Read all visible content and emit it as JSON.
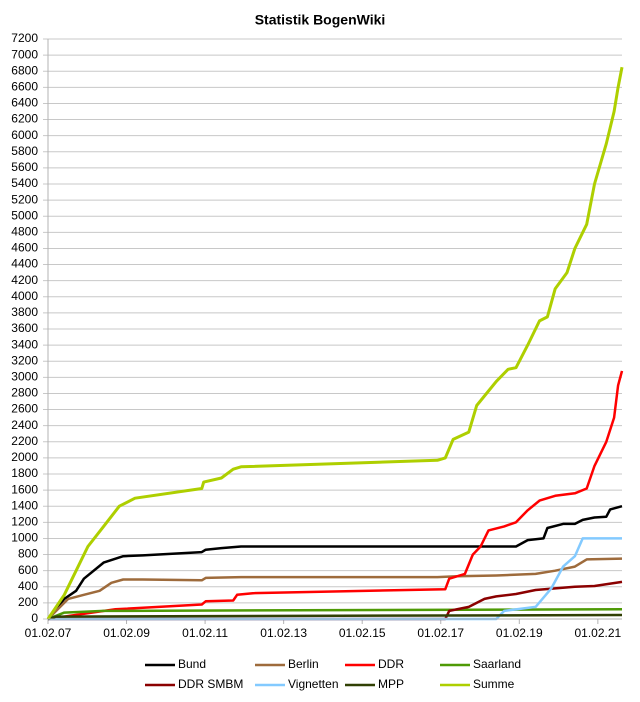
{
  "chart_data": {
    "type": "line",
    "title": "Statistik BogenWiki",
    "xlim": [
      2007.085,
      2021.7
    ],
    "ylim": [
      0,
      7200
    ],
    "yticks": [
      0,
      200,
      400,
      600,
      800,
      1000,
      1200,
      1400,
      1600,
      1800,
      2000,
      2200,
      2400,
      2600,
      2800,
      3000,
      3200,
      3400,
      3600,
      3800,
      4000,
      4200,
      4400,
      4600,
      4800,
      5000,
      5200,
      5400,
      5600,
      5800,
      6000,
      6200,
      6400,
      6600,
      6800,
      7000,
      7200
    ],
    "xticks": [
      {
        "value": 2007.085,
        "label": "01.02.07"
      },
      {
        "value": 2009.085,
        "label": "01.02.09"
      },
      {
        "value": 2011.085,
        "label": "01.02.11"
      },
      {
        "value": 2013.085,
        "label": "01.02.13"
      },
      {
        "value": 2015.085,
        "label": "01.02.15"
      },
      {
        "value": 2017.085,
        "label": "01.02.17"
      },
      {
        "value": 2019.085,
        "label": "01.02.19"
      },
      {
        "value": 2021.085,
        "label": "01.02.21"
      }
    ],
    "grid": true,
    "series": [
      {
        "name": "Bund",
        "color": "#000000",
        "x": [
          2007.085,
          2007.5,
          2007.8,
          2008.0,
          2008.5,
          2009.0,
          2009.5,
          2011.0,
          2011.1,
          2011.5,
          2012.0,
          2017.0,
          2019.0,
          2019.3,
          2019.7,
          2019.8,
          2020.2,
          2020.5,
          2020.7,
          2021.0,
          2021.3,
          2021.4,
          2021.7
        ],
        "values": [
          0,
          250,
          350,
          500,
          700,
          780,
          790,
          830,
          860,
          880,
          900,
          900,
          900,
          980,
          1000,
          1130,
          1180,
          1180,
          1230,
          1260,
          1270,
          1360,
          1400
        ]
      },
      {
        "name": "Berlin",
        "color": "#9e6b3c",
        "x": [
          2007.085,
          2007.6,
          2008.0,
          2008.4,
          2008.7,
          2009.0,
          2009.5,
          2011.0,
          2011.1,
          2012.0,
          2017.0,
          2017.5,
          2018.5,
          2019.5,
          2020.0,
          2020.5,
          2020.8,
          2021.7
        ],
        "values": [
          0,
          250,
          300,
          350,
          450,
          490,
          490,
          480,
          510,
          520,
          520,
          530,
          540,
          560,
          600,
          650,
          740,
          750
        ]
      },
      {
        "name": "DDR",
        "color": "#ff0000",
        "x": [
          2007.085,
          2008.2,
          2008.8,
          2011.0,
          2011.1,
          2011.8,
          2011.9,
          2012.3,
          2017.2,
          2017.3,
          2017.7,
          2017.9,
          2018.1,
          2018.3,
          2018.7,
          2019.0,
          2019.3,
          2019.6,
          2020.0,
          2020.5,
          2020.8,
          2021.0,
          2021.3,
          2021.5,
          2021.6,
          2021.7
        ],
        "values": [
          0,
          80,
          120,
          180,
          220,
          230,
          300,
          320,
          370,
          500,
          560,
          800,
          900,
          1100,
          1150,
          1200,
          1350,
          1470,
          1530,
          1560,
          1620,
          1900,
          2200,
          2500,
          2900,
          3080
        ]
      },
      {
        "name": "Saarland",
        "color": "#4e9a06",
        "x": [
          2007.085,
          2007.5,
          2008.5,
          2021.7
        ],
        "values": [
          0,
          80,
          100,
          120
        ]
      },
      {
        "name": "DDR SMBM",
        "color": "#8b0000",
        "x": [
          2007.085,
          2017.2,
          2017.3,
          2017.8,
          2018.2,
          2018.5,
          2019.0,
          2019.5,
          2020.0,
          2020.5,
          2021.0,
          2021.7
        ],
        "values": [
          0,
          0,
          100,
          150,
          250,
          280,
          310,
          360,
          380,
          400,
          410,
          460
        ]
      },
      {
        "name": "Vignetten",
        "color": "#83caff",
        "x": [
          2007.085,
          2018.5,
          2018.7,
          2019.5,
          2019.9,
          2020.2,
          2020.5,
          2020.7,
          2021.7
        ],
        "values": [
          0,
          0,
          100,
          150,
          380,
          650,
          780,
          1000,
          1000
        ]
      },
      {
        "name": "MPP",
        "color": "#314004",
        "x": [
          2007.085,
          2007.3,
          2021.7
        ],
        "values": [
          0,
          30,
          50
        ]
      },
      {
        "name": "Summe",
        "color": "#aecf00",
        "x": [
          2007.085,
          2007.5,
          2007.8,
          2008.1,
          2008.5,
          2008.9,
          2009.3,
          2011.0,
          2011.05,
          2011.5,
          2011.8,
          2012.0,
          2017.0,
          2017.2,
          2017.4,
          2017.8,
          2018.0,
          2018.5,
          2018.8,
          2019.0,
          2019.3,
          2019.6,
          2019.8,
          2020.0,
          2020.3,
          2020.5,
          2020.8,
          2021.0,
          2021.3,
          2021.5,
          2021.6,
          2021.7
        ],
        "values": [
          0,
          300,
          600,
          900,
          1150,
          1400,
          1500,
          1620,
          1700,
          1750,
          1860,
          1890,
          1970,
          2000,
          2230,
          2320,
          2650,
          2950,
          3100,
          3120,
          3400,
          3700,
          3750,
          4100,
          4300,
          4600,
          4900,
          5400,
          5900,
          6300,
          6600,
          6850
        ]
      }
    ]
  }
}
